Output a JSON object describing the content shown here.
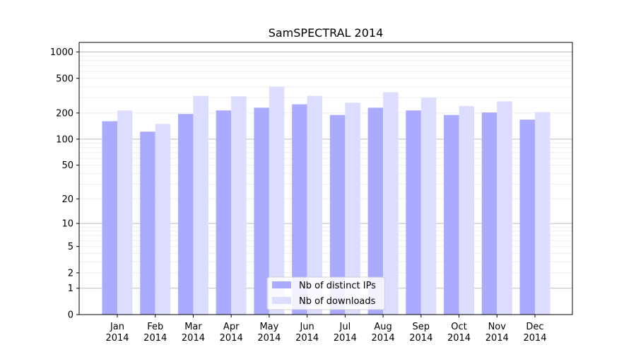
{
  "chart_data": {
    "type": "bar",
    "title": "SamSPECTRAL 2014",
    "xlabel": "",
    "ylabel": "",
    "yscale": "log(y+1)",
    "ylim": [
      0,
      1200
    ],
    "yticks": [
      0,
      1,
      2,
      5,
      10,
      20,
      50,
      100,
      200,
      500,
      1000
    ],
    "grid": true,
    "legend_position": "bottom-center",
    "categories": [
      "Jan\n2014",
      "Feb\n2014",
      "Mar\n2014",
      "Apr\n2014",
      "May\n2014",
      "Jun\n2014",
      "Jul\n2014",
      "Aug\n2014",
      "Sep\n2014",
      "Oct\n2014",
      "Nov\n2014",
      "Dec\n2014"
    ],
    "series": [
      {
        "name": "Nb of distinct IPs",
        "color": "#aaaaff",
        "values": [
          161,
          122,
          195,
          214,
          230,
          252,
          190,
          230,
          214,
          190,
          203,
          168
        ]
      },
      {
        "name": "Nb of downloads",
        "color": "#ddddff",
        "values": [
          214,
          150,
          315,
          310,
          400,
          315,
          263,
          347,
          300,
          240,
          272,
          205
        ]
      }
    ]
  }
}
